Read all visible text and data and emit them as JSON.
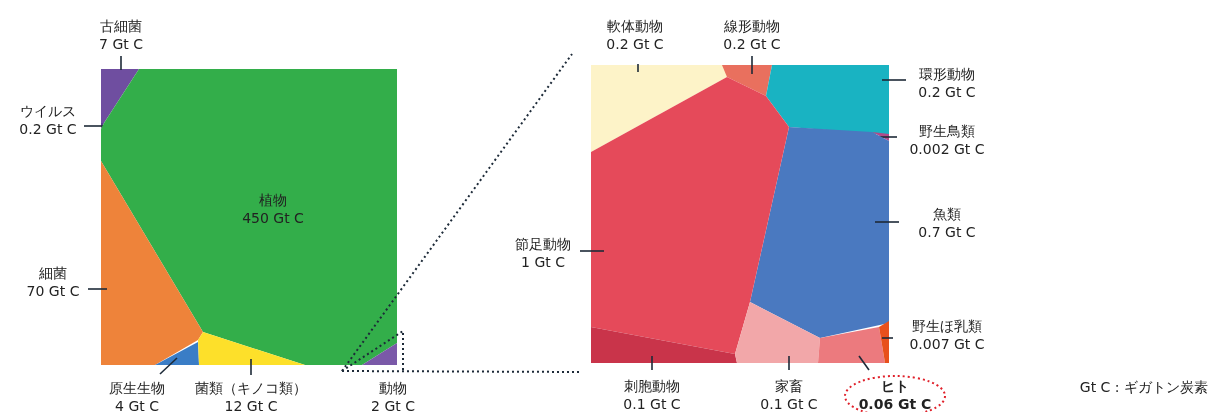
{
  "chart_data": [
    {
      "type": "other",
      "categories": [
        "古細菌",
        "ウイルス",
        "植物",
        "細菌",
        "原生生物",
        "菌類（キノコ類）",
        "動物"
      ],
      "values": [
        7,
        0.2,
        450,
        70,
        4,
        12,
        2
      ],
      "value_labels": [
        "7 Gt C",
        "0.2 Gt C",
        "450 Gt C",
        "70 Gt C",
        "4 Gt C",
        "12 Gt C",
        "2 Gt C"
      ],
      "colors": [
        "#6f4ea0",
        "#5a3f8f",
        "#33ae4a",
        "#ee833a",
        "#3a7dc6",
        "#fde02a",
        "#7a59a8"
      ]
    },
    {
      "type": "other",
      "categories": [
        "軟体動物",
        "線形動物",
        "環形動物",
        "野生鳥類",
        "魚類",
        "節足動物",
        "刺胞動物",
        "家畜",
        "ヒト",
        "野生ほ乳類"
      ],
      "values": [
        0.2,
        0.2,
        0.2,
        0.002,
        0.7,
        1,
        0.1,
        0.1,
        0.06,
        0.007
      ],
      "value_labels": [
        "0.2 Gt C",
        "0.2 Gt C",
        "0.2 Gt C",
        "0.002 Gt C",
        "0.7 Gt C",
        "1 Gt C",
        "0.1 Gt C",
        "0.1 Gt C",
        "0.06 Gt C",
        "0.007 Gt C"
      ],
      "colors": [
        "#fdf3c8",
        "#e9705e",
        "#19b3c2",
        "#b04a8a",
        "#4a79c0",
        "#e54a5a",
        "#c9344a",
        "#f2a7a9",
        "#ec7a7e",
        "#e8501c"
      ],
      "annotations": [
        "Gt C : ギガトン炭素"
      ]
    }
  ]
}
